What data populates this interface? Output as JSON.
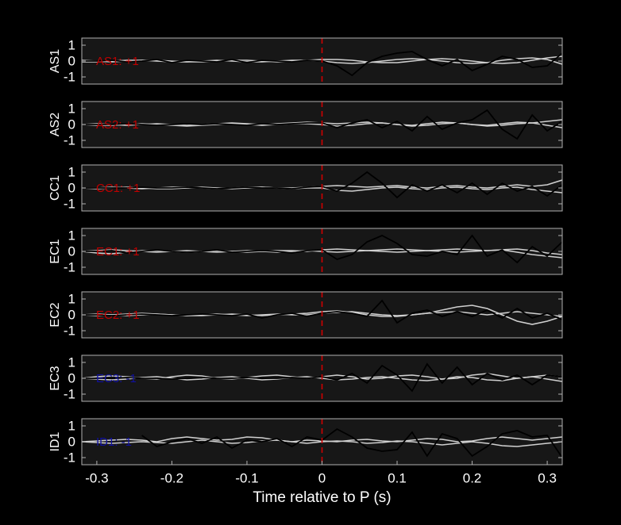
{
  "chart_data": [
    {
      "type": "line",
      "ylabel": "AS1",
      "annotation": "AS1: +1",
      "annotation_color": "#c00000",
      "x": [
        -0.32,
        -0.3,
        -0.28,
        -0.26,
        -0.24,
        -0.22,
        -0.2,
        -0.18,
        -0.16,
        -0.14,
        -0.12,
        -0.1,
        -0.08,
        -0.06,
        -0.04,
        -0.02,
        0,
        0.02,
        0.04,
        0.06,
        0.08,
        0.1,
        0.12,
        0.14,
        0.16,
        0.18,
        0.2,
        0.22,
        0.24,
        0.26,
        0.28,
        0.3,
        0.32
      ],
      "xlim": [
        -0.32,
        0.32
      ],
      "ylim": [
        -1.45,
        1.45
      ],
      "yticks": [
        -1,
        0,
        1
      ],
      "vline": 0,
      "vline_color": "#d00000",
      "series": [
        {
          "color": "#d0d0d0",
          "values": [
            0.05,
            0,
            -0.05,
            0,
            0.05,
            0.05,
            0,
            -0.05,
            -0.05,
            0,
            0.05,
            0.05,
            0,
            -0.05,
            0,
            0.05,
            0.1,
            0.1,
            0.05,
            -0.05,
            -0.1,
            -0.1,
            0,
            0.1,
            0.15,
            0.1,
            0,
            -0.1,
            -0.15,
            -0.1,
            0.05,
            0.2,
            0.3
          ]
        },
        {
          "color": "#d0d0d0",
          "values": [
            -0.05,
            -0.05,
            0,
            0.05,
            0.05,
            0,
            -0.05,
            -0.05,
            0,
            0.05,
            0,
            -0.05,
            -0.05,
            0,
            0.05,
            0.05,
            0,
            -0.1,
            -0.15,
            -0.1,
            0,
            0.1,
            0.15,
            0.1,
            0,
            -0.1,
            -0.15,
            -0.1,
            0.05,
            0.15,
            0.2,
            0.1,
            -0.2
          ]
        },
        {
          "color": "#000000",
          "values": [
            0,
            0,
            0.05,
            -0.05,
            0,
            0.1,
            -0.1,
            0.05,
            0,
            -0.05,
            0.1,
            -0.1,
            0.05,
            0,
            -0.05,
            0.05,
            0,
            -0.3,
            -0.9,
            -0.1,
            0.3,
            0.5,
            0.6,
            0.1,
            -0.3,
            0.1,
            -0.6,
            -0.2,
            0.3,
            0.1,
            -0.4,
            -0.3,
            0.5
          ]
        }
      ]
    },
    {
      "type": "line",
      "ylabel": "AS2",
      "annotation": "AS2: +1",
      "annotation_color": "#c00000",
      "x": [
        -0.32,
        -0.3,
        -0.28,
        -0.26,
        -0.24,
        -0.22,
        -0.2,
        -0.18,
        -0.16,
        -0.14,
        -0.12,
        -0.1,
        -0.08,
        -0.06,
        -0.04,
        -0.02,
        0,
        0.02,
        0.04,
        0.06,
        0.08,
        0.1,
        0.12,
        0.14,
        0.16,
        0.18,
        0.2,
        0.22,
        0.24,
        0.26,
        0.28,
        0.3,
        0.32
      ],
      "xlim": [
        -0.32,
        0.32
      ],
      "ylim": [
        -1.45,
        1.45
      ],
      "yticks": [
        -1,
        0,
        1
      ],
      "vline": 0,
      "vline_color": "#d00000",
      "series": [
        {
          "color": "#d0d0d0",
          "values": [
            0,
            0.05,
            0,
            -0.05,
            0,
            0.05,
            0,
            -0.05,
            0,
            0.05,
            0.1,
            0.05,
            0,
            0.05,
            0.1,
            0.15,
            0.1,
            0.05,
            0.1,
            0.15,
            0.1,
            0,
            -0.05,
            0.05,
            0.15,
            0.1,
            0,
            -0.05,
            0.05,
            0.15,
            0.1,
            0.2,
            0.3
          ]
        },
        {
          "color": "#d0d0d0",
          "values": [
            0,
            -0.05,
            -0.05,
            0,
            0.05,
            0,
            -0.05,
            -0.1,
            -0.05,
            0,
            0.05,
            0,
            -0.05,
            0,
            0.05,
            0.05,
            0,
            -0.1,
            -0.05,
            0.05,
            0.1,
            0,
            -0.1,
            -0.05,
            0.05,
            0.1,
            0,
            -0.1,
            -0.05,
            0.05,
            0.1,
            -0.05,
            -0.2
          ]
        },
        {
          "color": "#000000",
          "values": [
            0,
            0,
            0,
            0.05,
            0,
            -0.05,
            0,
            0.05,
            0,
            0.05,
            0,
            -0.05,
            0.05,
            0,
            0.05,
            0.1,
            0.1,
            -0.2,
            0.1,
            0.3,
            -0.2,
            0.2,
            -0.4,
            0.5,
            -0.3,
            0.1,
            0.3,
            0.9,
            -0.3,
            -0.9,
            0.6,
            -0.4,
            0.2
          ]
        }
      ]
    },
    {
      "type": "line",
      "ylabel": "CC1",
      "annotation": "CC1: +1",
      "annotation_color": "#c00000",
      "x": [
        -0.32,
        -0.3,
        -0.28,
        -0.26,
        -0.24,
        -0.22,
        -0.2,
        -0.18,
        -0.16,
        -0.14,
        -0.12,
        -0.1,
        -0.08,
        -0.06,
        -0.04,
        -0.02,
        0,
        0.02,
        0.04,
        0.06,
        0.08,
        0.1,
        0.12,
        0.14,
        0.16,
        0.18,
        0.2,
        0.22,
        0.24,
        0.26,
        0.28,
        0.3,
        0.32
      ],
      "xlim": [
        -0.32,
        0.32
      ],
      "ylim": [
        -1.45,
        1.45
      ],
      "yticks": [
        -1,
        0,
        1
      ],
      "vline": 0,
      "vline_color": "#d00000",
      "series": [
        {
          "color": "#d0d0d0",
          "values": [
            0,
            0,
            0.05,
            0,
            -0.05,
            0,
            0.05,
            0.05,
            0,
            -0.05,
            0,
            0.05,
            0.05,
            0,
            0,
            0.05,
            0.1,
            0.15,
            0.1,
            0.05,
            0.1,
            0.15,
            0.05,
            0,
            0.1,
            0.15,
            0.05,
            0,
            0.1,
            0.2,
            0.1,
            0.2,
            0.5
          ]
        },
        {
          "color": "#d0d0d0",
          "values": [
            0,
            -0.05,
            0,
            0.05,
            0,
            -0.05,
            -0.05,
            0,
            0.05,
            0,
            -0.05,
            0,
            0.05,
            0,
            -0.05,
            0,
            0,
            -0.15,
            -0.2,
            -0.1,
            0,
            0.05,
            -0.05,
            -0.1,
            0,
            0.05,
            -0.05,
            -0.1,
            0,
            0.05,
            -0.1,
            -0.2,
            -0.3
          ]
        },
        {
          "color": "#000000",
          "values": [
            0,
            0,
            0,
            0,
            0.05,
            0,
            0,
            0.05,
            0,
            -0.05,
            0,
            0.05,
            0,
            0,
            -0.05,
            0.05,
            0.1,
            -0.2,
            0.3,
            1.0,
            0.3,
            -0.6,
            0.2,
            -0.2,
            0.2,
            -0.3,
            0.3,
            -0.4,
            0.3,
            -0.2,
            0.1,
            -0.5,
            0.2
          ]
        }
      ]
    },
    {
      "type": "line",
      "ylabel": "EC1",
      "annotation": "EC1: +1",
      "annotation_color": "#c00000",
      "x": [
        -0.32,
        -0.3,
        -0.28,
        -0.26,
        -0.24,
        -0.22,
        -0.2,
        -0.18,
        -0.16,
        -0.14,
        -0.12,
        -0.1,
        -0.08,
        -0.06,
        -0.04,
        -0.02,
        0,
        0.02,
        0.04,
        0.06,
        0.08,
        0.1,
        0.12,
        0.14,
        0.16,
        0.18,
        0.2,
        0.22,
        0.24,
        0.26,
        0.28,
        0.3,
        0.32
      ],
      "xlim": [
        -0.32,
        0.32
      ],
      "ylim": [
        -1.45,
        1.45
      ],
      "yticks": [
        -1,
        0,
        1
      ],
      "vline": 0,
      "vline_color": "#d00000",
      "series": [
        {
          "color": "#d0d0d0",
          "values": [
            0,
            -0.1,
            -0.15,
            -0.05,
            0.05,
            0.05,
            0,
            -0.05,
            0,
            0.05,
            0,
            -0.05,
            0,
            0.05,
            0.05,
            0,
            0.1,
            0.15,
            0.1,
            0.05,
            0.1,
            0.15,
            0.1,
            0.05,
            0.1,
            0.15,
            0.1,
            0.05,
            0.1,
            0.15,
            0.05,
            -0.1,
            -0.2
          ]
        },
        {
          "color": "#d0d0d0",
          "values": [
            0,
            0.05,
            0.1,
            0.05,
            0,
            -0.05,
            0,
            0.05,
            0,
            -0.05,
            0,
            0.05,
            0,
            -0.05,
            0,
            0.05,
            0,
            -0.05,
            0,
            0.05,
            0,
            -0.05,
            0,
            0.05,
            0,
            -0.05,
            0,
            0.05,
            0.1,
            -0.05,
            -0.2,
            -0.3,
            -0.4
          ]
        },
        {
          "color": "#000000",
          "values": [
            0,
            0,
            0.05,
            -0.1,
            0,
            0.1,
            0,
            -0.05,
            0,
            0.1,
            -0.05,
            0,
            0.05,
            0,
            -0.1,
            0.05,
            0.1,
            -0.5,
            -0.2,
            0.6,
            1.0,
            0.5,
            -0.2,
            -0.3,
            0,
            -0.2,
            1.0,
            -0.3,
            0.1,
            -0.7,
            0.3,
            -0.3,
            0.6
          ]
        }
      ]
    },
    {
      "type": "line",
      "ylabel": "EC2",
      "annotation": "EC2: +1",
      "annotation_color": "#c00000",
      "x": [
        -0.32,
        -0.3,
        -0.28,
        -0.26,
        -0.24,
        -0.22,
        -0.2,
        -0.18,
        -0.16,
        -0.14,
        -0.12,
        -0.1,
        -0.08,
        -0.06,
        -0.04,
        -0.02,
        0,
        0.02,
        0.04,
        0.06,
        0.08,
        0.1,
        0.12,
        0.14,
        0.16,
        0.18,
        0.2,
        0.22,
        0.24,
        0.26,
        0.28,
        0.3,
        0.32
      ],
      "xlim": [
        -0.32,
        0.32
      ],
      "ylim": [
        -1.45,
        1.45
      ],
      "yticks": [
        -1,
        0,
        1
      ],
      "vline": 0,
      "vline_color": "#d00000",
      "series": [
        {
          "color": "#d0d0d0",
          "values": [
            0,
            0.05,
            0,
            -0.05,
            0,
            0.05,
            0,
            -0.05,
            -0.05,
            0,
            0.05,
            0,
            -0.05,
            0,
            0.05,
            0.1,
            0.2,
            0.25,
            0.15,
            0,
            -0.1,
            -0.1,
            0,
            0.1,
            0.3,
            0.5,
            0.6,
            0.4,
            0,
            -0.4,
            -0.6,
            -0.4,
            -0.1
          ]
        },
        {
          "color": "#d0d0d0",
          "values": [
            0,
            -0.05,
            0,
            0.05,
            0.1,
            0.05,
            0,
            -0.05,
            0,
            0.05,
            0,
            -0.05,
            0,
            0.05,
            0,
            0,
            0.1,
            0.15,
            0.2,
            0.1,
            0,
            -0.05,
            0,
            0.1,
            0.15,
            0.2,
            0.1,
            0,
            0.1,
            0.2,
            0.1,
            0,
            -0.1
          ]
        },
        {
          "color": "#000000",
          "values": [
            0,
            0,
            -0.05,
            0,
            0.05,
            0,
            -0.05,
            0,
            0.05,
            0,
            -0.05,
            0.05,
            -0.2,
            0,
            0.1,
            -0.1,
            0.1,
            0.2,
            0.1,
            -0.1,
            0.9,
            -0.5,
            0.1,
            0.3,
            -0.1,
            0.2,
            -0.1,
            0.3,
            -0.2,
            0.4,
            -0.2,
            0.1,
            -0.3
          ]
        }
      ]
    },
    {
      "type": "line",
      "ylabel": "EC3",
      "annotation": "EC3: -1",
      "annotation_color": "#1010a0",
      "x": [
        -0.32,
        -0.3,
        -0.28,
        -0.26,
        -0.24,
        -0.22,
        -0.2,
        -0.18,
        -0.16,
        -0.14,
        -0.12,
        -0.1,
        -0.08,
        -0.06,
        -0.04,
        -0.02,
        0,
        0.02,
        0.04,
        0.06,
        0.08,
        0.1,
        0.12,
        0.14,
        0.16,
        0.18,
        0.2,
        0.22,
        0.24,
        0.26,
        0.28,
        0.3,
        0.32
      ],
      "xlim": [
        -0.32,
        0.32
      ],
      "ylim": [
        -1.45,
        1.45
      ],
      "yticks": [
        -1,
        0,
        1
      ],
      "vline": 0,
      "vline_color": "#d00000",
      "series": [
        {
          "color": "#d0d0d0",
          "values": [
            0,
            0.1,
            0.15,
            0.1,
            0,
            -0.05,
            0.1,
            0.2,
            0.15,
            0,
            -0.05,
            0.05,
            0.15,
            0.2,
            0.1,
            0,
            0.1,
            0.2,
            0.1,
            -0.05,
            0,
            0.15,
            0.2,
            0.1,
            -0.05,
            0,
            0.2,
            0.3,
            0.15,
            0,
            0.1,
            0.2,
            0.1
          ]
        },
        {
          "color": "#d0d0d0",
          "values": [
            0,
            -0.05,
            -0.1,
            -0.05,
            0.05,
            0.1,
            0,
            -0.1,
            -0.05,
            0.05,
            0.1,
            0,
            -0.1,
            -0.05,
            0.05,
            0.1,
            0,
            -0.1,
            -0.05,
            0.05,
            0.1,
            0,
            -0.1,
            -0.15,
            -0.05,
            0.1,
            0.05,
            -0.1,
            -0.15,
            0,
            0.1,
            -0.05,
            -0.2
          ]
        },
        {
          "color": "#000000",
          "values": [
            0,
            0,
            0,
            0.05,
            0,
            0,
            -0.05,
            0,
            0.05,
            0,
            0,
            0.05,
            0,
            0,
            0.05,
            0,
            0.1,
            -0.1,
            0.3,
            -0.3,
            0.8,
            0.2,
            -0.8,
            0.9,
            -0.3,
            0.7,
            -0.4,
            0.3,
            -0.1,
            0.2,
            -0.4,
            0.2,
            0.1
          ]
        }
      ]
    },
    {
      "type": "line",
      "ylabel": "ID1",
      "annotation": "ID1: -1",
      "annotation_color": "#1010a0",
      "x": [
        -0.32,
        -0.3,
        -0.28,
        -0.26,
        -0.24,
        -0.22,
        -0.2,
        -0.18,
        -0.16,
        -0.14,
        -0.12,
        -0.1,
        -0.08,
        -0.06,
        -0.04,
        -0.02,
        0,
        0.02,
        0.04,
        0.06,
        0.08,
        0.1,
        0.12,
        0.14,
        0.16,
        0.18,
        0.2,
        0.22,
        0.24,
        0.26,
        0.28,
        0.3,
        0.32
      ],
      "xlim": [
        -0.32,
        0.32
      ],
      "ylim": [
        -1.45,
        1.45
      ],
      "yticks": [
        -1,
        0,
        1
      ],
      "vline": 0,
      "vline_color": "#d00000",
      "xticks": [
        -0.3,
        -0.2,
        -0.1,
        0,
        0.1,
        0.2,
        0.3
      ],
      "xlabel": "Time relative to P (s)",
      "series": [
        {
          "color": "#d0d0d0",
          "values": [
            0,
            0.05,
            0.1,
            0.15,
            0.1,
            0,
            0.2,
            0.3,
            0.2,
            0.1,
            0.15,
            0.3,
            0.25,
            0.1,
            0,
            0.1,
            0.05,
            0,
            0.1,
            0.15,
            0.05,
            0,
            0.1,
            0.2,
            0.15,
            0,
            0.05,
            0.2,
            0.3,
            0.2,
            0.1,
            0.2,
            0.3
          ]
        },
        {
          "color": "#d0d0d0",
          "values": [
            0,
            -0.05,
            -0.1,
            -0.05,
            0,
            -0.05,
            -0.1,
            0,
            0.1,
            0,
            -0.1,
            -0.05,
            0.05,
            0.1,
            0,
            -0.1,
            0,
            0.05,
            0,
            -0.1,
            -0.05,
            0.05,
            0,
            -0.1,
            -0.2,
            -0.1,
            0,
            -0.1,
            -0.25,
            -0.3,
            -0.2,
            -0.1,
            0
          ]
        },
        {
          "color": "#000000",
          "values": [
            null,
            null,
            null,
            null,
            0.4,
            -0.3,
            0,
            0.2,
            -0.1,
            0.3,
            -0.4,
            0.1,
            0,
            0.2,
            -0.3,
            0.3,
            0.1,
            0.8,
            0.3,
            -0.4,
            -0.6,
            -0.5,
            0.6,
            -0.9,
            0.5,
            0.2,
            -0.9,
            -0.3,
            0.5,
            0.7,
            0.3,
            0.4,
            -1.0
          ]
        }
      ]
    }
  ]
}
